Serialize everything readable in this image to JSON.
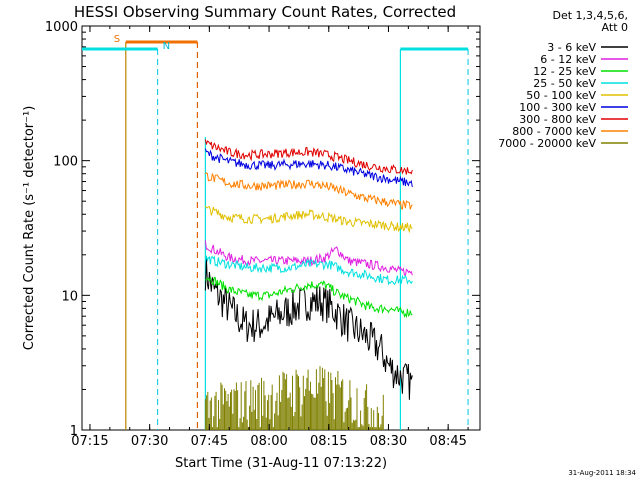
{
  "chart_data": {
    "type": "line",
    "title": "HESSI Observing Summary Count Rates, Corrected",
    "xlabel": "Start Time (31-Aug-11 07:13:22)",
    "ylabel": "Corrected Count Rate (s⁻¹ detector⁻¹)",
    "yscale": "log",
    "ylim": [
      1,
      1000
    ],
    "xlim": [
      "07:13",
      "08:53"
    ],
    "x_ticks": [
      "07:15",
      "07:30",
      "07:45",
      "08:00",
      "08:15",
      "08:30",
      "08:45"
    ],
    "y_ticks": [
      "1",
      "10",
      "100",
      "1000"
    ],
    "legend_header": [
      "Det 1,3,4,5,6,",
      "Att 0"
    ],
    "legend_position": "top-right outside",
    "datestamp": "31-Aug-2011 18:34",
    "markers": {
      "saa": {
        "label": "S",
        "start": "07:24",
        "end": "07:42"
      },
      "night": {
        "label": "N",
        "periods": [
          [
            "07:13",
            "07:32"
          ],
          [
            "08:33",
            "08:50"
          ]
        ]
      }
    },
    "series": [
      {
        "name": "3 - 6 keV",
        "color": "#000000",
        "points": [
          [
            "07:44",
            15
          ],
          [
            "07:46",
            11
          ],
          [
            "07:50",
            8
          ],
          [
            "07:54",
            6
          ],
          [
            "07:58",
            6
          ],
          [
            "08:02",
            7
          ],
          [
            "08:06",
            8
          ],
          [
            "08:10",
            9
          ],
          [
            "08:13",
            9
          ],
          [
            "08:16",
            8
          ],
          [
            "08:20",
            6
          ],
          [
            "08:24",
            5
          ],
          [
            "08:28",
            4
          ],
          [
            "08:30",
            3
          ],
          [
            "08:33",
            2.5
          ],
          [
            "08:36",
            2.2
          ]
        ]
      },
      {
        "name": "6 - 12 keV",
        "color": "#e020e0",
        "points": [
          [
            "07:44",
            24
          ],
          [
            "07:46",
            22
          ],
          [
            "07:50",
            19
          ],
          [
            "07:55",
            18
          ],
          [
            "08:00",
            18
          ],
          [
            "08:05",
            18
          ],
          [
            "08:10",
            18
          ],
          [
            "08:14",
            19
          ],
          [
            "08:17",
            22
          ],
          [
            "08:20",
            18
          ],
          [
            "08:25",
            17
          ],
          [
            "08:30",
            16
          ],
          [
            "08:33",
            15
          ],
          [
            "08:36",
            15
          ]
        ]
      },
      {
        "name": "12 - 25 keV",
        "color": "#00e000",
        "points": [
          [
            "07:44",
            14
          ],
          [
            "07:46",
            13
          ],
          [
            "07:50",
            11
          ],
          [
            "07:55",
            10
          ],
          [
            "08:00",
            10
          ],
          [
            "08:05",
            11
          ],
          [
            "08:10",
            12
          ],
          [
            "08:14",
            12
          ],
          [
            "08:18",
            10
          ],
          [
            "08:22",
            9
          ],
          [
            "08:26",
            8
          ],
          [
            "08:30",
            8
          ],
          [
            "08:33",
            7.5
          ],
          [
            "08:36",
            7.5
          ]
        ]
      },
      {
        "name": "25 - 50 keV",
        "color": "#00e0e0",
        "points": [
          [
            "07:44",
            19
          ],
          [
            "07:46",
            18
          ],
          [
            "07:50",
            17
          ],
          [
            "07:55",
            16
          ],
          [
            "08:00",
            16
          ],
          [
            "08:05",
            16
          ],
          [
            "08:10",
            17
          ],
          [
            "08:15",
            17
          ],
          [
            "08:20",
            15
          ],
          [
            "08:25",
            14
          ],
          [
            "08:30",
            13
          ],
          [
            "08:33",
            13
          ],
          [
            "08:36",
            13
          ]
        ]
      },
      {
        "name": "50 - 100 keV",
        "color": "#e0c000",
        "points": [
          [
            "07:44",
            44
          ],
          [
            "07:46",
            42
          ],
          [
            "07:50",
            38
          ],
          [
            "07:55",
            37
          ],
          [
            "08:00",
            37
          ],
          [
            "08:05",
            39
          ],
          [
            "08:10",
            40
          ],
          [
            "08:15",
            38
          ],
          [
            "08:20",
            35
          ],
          [
            "08:25",
            34
          ],
          [
            "08:30",
            33
          ],
          [
            "08:33",
            32
          ],
          [
            "08:36",
            32
          ]
        ]
      },
      {
        "name": "100 - 300 keV",
        "color": "#0000e0",
        "points": [
          [
            "07:44",
            115
          ],
          [
            "07:46",
            108
          ],
          [
            "07:50",
            98
          ],
          [
            "07:55",
            93
          ],
          [
            "08:00",
            92
          ],
          [
            "08:05",
            94
          ],
          [
            "08:10",
            95
          ],
          [
            "08:15",
            92
          ],
          [
            "08:20",
            85
          ],
          [
            "08:25",
            78
          ],
          [
            "08:30",
            73
          ],
          [
            "08:33",
            70
          ],
          [
            "08:36",
            68
          ]
        ]
      },
      {
        "name": "300 - 800 keV",
        "color": "#e00000",
        "points": [
          [
            "07:44",
            135
          ],
          [
            "07:46",
            128
          ],
          [
            "07:50",
            115
          ],
          [
            "07:55",
            110
          ],
          [
            "08:00",
            112
          ],
          [
            "08:05",
            115
          ],
          [
            "08:10",
            116
          ],
          [
            "08:15",
            110
          ],
          [
            "08:20",
            100
          ],
          [
            "08:25",
            92
          ],
          [
            "08:30",
            87
          ],
          [
            "08:33",
            85
          ],
          [
            "08:36",
            84
          ]
        ]
      },
      {
        "name": "800 - 7000 keV",
        "color": "#ff8000",
        "points": [
          [
            "07:44",
            78
          ],
          [
            "07:46",
            74
          ],
          [
            "07:50",
            68
          ],
          [
            "07:55",
            65
          ],
          [
            "08:00",
            65
          ],
          [
            "08:05",
            66
          ],
          [
            "08:10",
            68
          ],
          [
            "08:15",
            64
          ],
          [
            "08:20",
            57
          ],
          [
            "08:25",
            52
          ],
          [
            "08:30",
            49
          ],
          [
            "08:33",
            47
          ],
          [
            "08:36",
            46
          ]
        ]
      },
      {
        "name": "7000 - 20000 keV",
        "color": "#808000",
        "points": [
          [
            "07:44",
            1.5
          ],
          [
            "07:50",
            1.6
          ],
          [
            "07:55",
            1.7
          ],
          [
            "08:00",
            1.8
          ],
          [
            "08:05",
            2.0
          ],
          [
            "08:10",
            2.2
          ],
          [
            "08:15",
            2.0
          ],
          [
            "08:20",
            1.8
          ],
          [
            "08:25",
            1.5
          ],
          [
            "08:29",
            1.3
          ]
        ]
      }
    ]
  }
}
